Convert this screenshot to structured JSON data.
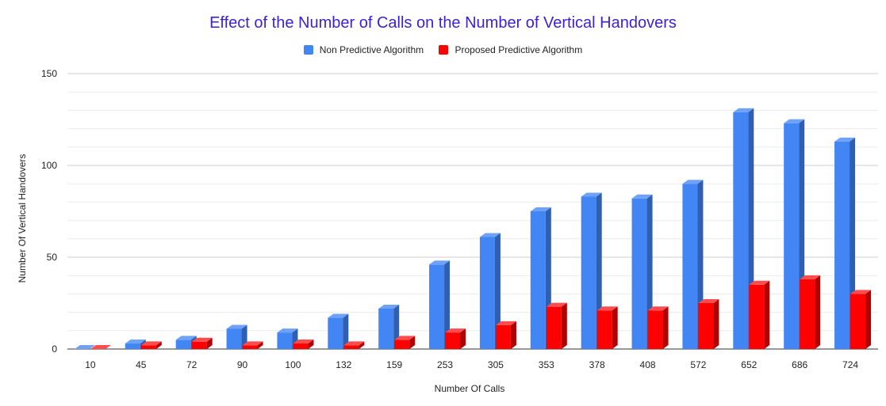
{
  "chart_data": {
    "type": "bar",
    "title": "Effect of the Number of Calls on the Number of Vertical Handovers",
    "xlabel": "Number Of Calls",
    "ylabel": "Number Of Vertical Handovers",
    "categories": [
      "10",
      "45",
      "72",
      "90",
      "100",
      "132",
      "159",
      "253",
      "305",
      "353",
      "378",
      "408",
      "572",
      "652",
      "686",
      "724"
    ],
    "series": [
      {
        "name": "Non Predictive Algorithm",
        "color": "#4285f4",
        "side_color": "#2f5fb3",
        "top_color": "#6ea2f7",
        "values": [
          0,
          3,
          5,
          11,
          9,
          17,
          22,
          46,
          61,
          75,
          83,
          82,
          90,
          129,
          123,
          113
        ]
      },
      {
        "name": "Proposed Predictive Algorithm",
        "color": "#ff0000",
        "side_color": "#b30000",
        "top_color": "#ff4d4d",
        "values": [
          0,
          2,
          4,
          2,
          3,
          2,
          5,
          9,
          13,
          23,
          21,
          21,
          25,
          35,
          38,
          30
        ]
      }
    ],
    "ylim": [
      0,
      150
    ],
    "yticks": [
      0,
      50,
      100,
      150
    ],
    "legend_position": "top",
    "grid": true
  }
}
